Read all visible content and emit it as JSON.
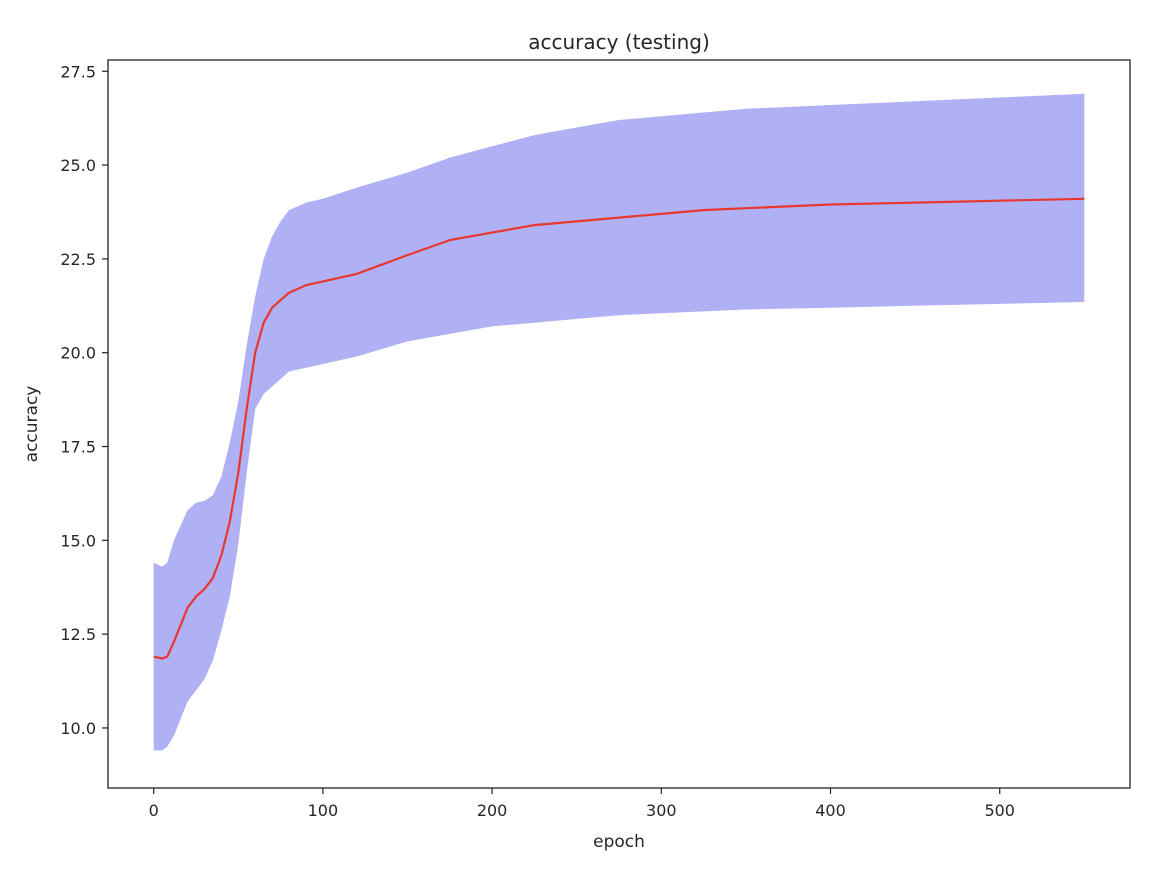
{
  "chart_data": {
    "type": "line",
    "title": "accuracy (testing)",
    "xlabel": "epoch",
    "ylabel": "accuracy",
    "xlim": [
      -27,
      577
    ],
    "ylim": [
      8.4,
      27.8
    ],
    "xticks": [
      0,
      100,
      200,
      300,
      400,
      500
    ],
    "xtick_labels": [
      "0",
      "100",
      "200",
      "300",
      "400",
      "500"
    ],
    "yticks": [
      10.0,
      12.5,
      15.0,
      17.5,
      20.0,
      22.5,
      25.0,
      27.5
    ],
    "ytick_labels": [
      "10.0",
      "12.5",
      "15.0",
      "17.5",
      "20.0",
      "22.5",
      "25.0",
      "27.5"
    ],
    "grid": false,
    "legend": "none",
    "series": [
      {
        "kind": "mean_line",
        "color": "#e8372c",
        "x": [
          0,
          5,
          8,
          12,
          20,
          25,
          30,
          35,
          40,
          45,
          50,
          55,
          60,
          65,
          70,
          75,
          80,
          90,
          100,
          120,
          150,
          175,
          200,
          225,
          250,
          275,
          300,
          325,
          350,
          400,
          450,
          500,
          550
        ],
        "y": [
          11.9,
          11.85,
          11.9,
          12.3,
          13.2,
          13.5,
          13.7,
          14.0,
          14.6,
          15.5,
          16.8,
          18.5,
          20.0,
          20.8,
          21.2,
          21.4,
          21.6,
          21.8,
          21.9,
          22.1,
          22.6,
          23.0,
          23.2,
          23.4,
          23.5,
          23.6,
          23.7,
          23.8,
          23.85,
          23.95,
          24.0,
          24.05,
          24.1
        ]
      },
      {
        "kind": "band",
        "color": "#b0b0f5",
        "x": [
          0,
          5,
          8,
          12,
          20,
          25,
          30,
          35,
          40,
          45,
          50,
          55,
          60,
          65,
          70,
          75,
          80,
          90,
          100,
          120,
          150,
          175,
          200,
          225,
          250,
          275,
          300,
          325,
          350,
          400,
          450,
          500,
          550
        ],
        "upper": [
          14.4,
          14.3,
          14.4,
          15.0,
          15.8,
          16.0,
          16.05,
          16.2,
          16.7,
          17.6,
          18.7,
          20.2,
          21.5,
          22.5,
          23.1,
          23.5,
          23.8,
          24.0,
          24.1,
          24.4,
          24.8,
          25.2,
          25.5,
          25.8,
          26.0,
          26.2,
          26.3,
          26.4,
          26.5,
          26.6,
          26.7,
          26.8,
          26.9
        ],
        "lower": [
          9.4,
          9.4,
          9.5,
          9.8,
          10.7,
          11.0,
          11.3,
          11.8,
          12.6,
          13.5,
          14.9,
          16.8,
          18.5,
          18.9,
          19.1,
          19.3,
          19.5,
          19.6,
          19.7,
          19.9,
          20.3,
          20.5,
          20.7,
          20.8,
          20.9,
          21.0,
          21.05,
          21.1,
          21.15,
          21.2,
          21.25,
          21.3,
          21.35
        ]
      }
    ]
  }
}
